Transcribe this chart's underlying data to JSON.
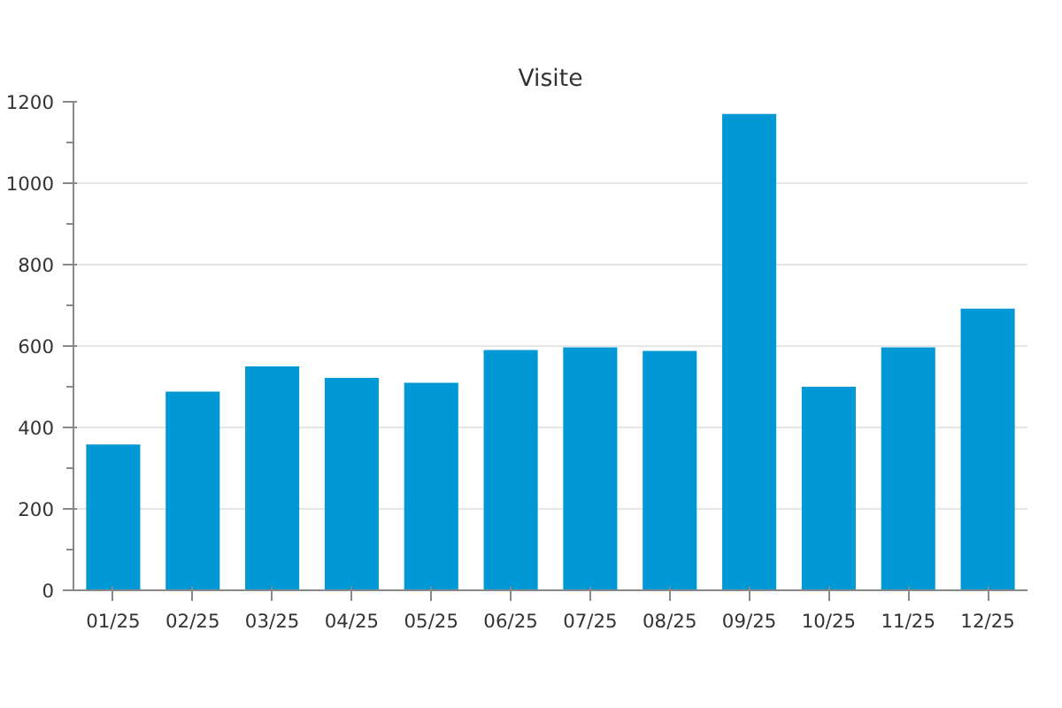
{
  "chart_data": {
    "type": "bar",
    "title": "Visite",
    "categories": [
      "01/25",
      "02/25",
      "03/25",
      "04/25",
      "05/25",
      "06/25",
      "07/25",
      "08/25",
      "09/25",
      "10/25",
      "11/25",
      "12/25"
    ],
    "values": [
      358,
      488,
      550,
      522,
      510,
      590,
      597,
      588,
      1170,
      500,
      597,
      692
    ],
    "color": "#0099d6",
    "ylim": [
      0,
      1200
    ],
    "yticks": [
      0,
      200,
      400,
      600,
      800,
      1000,
      1200
    ],
    "grid": "y"
  }
}
